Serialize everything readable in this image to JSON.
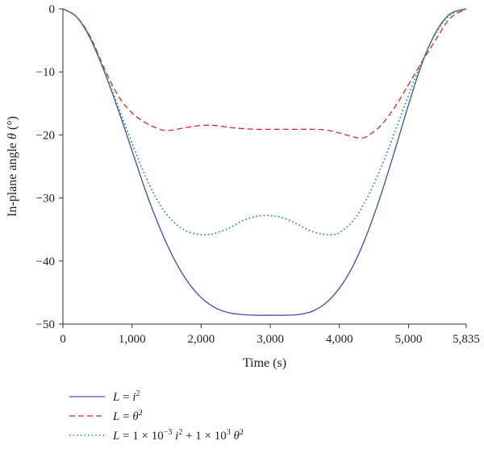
{
  "chart_data": {
    "type": "line",
    "xlabel": "Time (s)",
    "ylabel": "In-plane angle θ (°)",
    "xlim": [
      0,
      5835
    ],
    "ylim": [
      -50,
      0
    ],
    "x_ticks": [
      0,
      1000,
      2000,
      3000,
      4000,
      5000,
      5835
    ],
    "x_tick_labels": [
      "0",
      "1,000",
      "2,000",
      "3,000",
      "4,000",
      "5,000",
      "5,835"
    ],
    "y_ticks": [
      0,
      -10,
      -20,
      -30,
      -40,
      -50
    ],
    "y_tick_labels": [
      "0",
      "−10",
      "−20",
      "−30",
      "−40",
      "−50"
    ],
    "grid": false,
    "legend_position": "bottom-left",
    "series": [
      {
        "name": "L = i²",
        "color": "#3a4fb0",
        "style": "solid",
        "x": [
          0,
          200,
          400,
          600,
          800,
          1000,
          1200,
          1400,
          1600,
          1800,
          2000,
          2200,
          2400,
          2600,
          2800,
          3000,
          3200,
          3400,
          3600,
          3800,
          4000,
          4200,
          4400,
          4600,
          4800,
          5000,
          5200,
          5400,
          5600,
          5835
        ],
        "values": [
          0,
          -1.3,
          -4.8,
          -10.0,
          -16.0,
          -22.5,
          -29.0,
          -34.7,
          -39.5,
          -43.2,
          -45.8,
          -47.4,
          -48.2,
          -48.5,
          -48.6,
          -48.6,
          -48.6,
          -48.5,
          -48.0,
          -46.7,
          -44.3,
          -40.7,
          -35.7,
          -29.5,
          -22.5,
          -15.2,
          -8.5,
          -3.6,
          -0.8,
          0
        ]
      },
      {
        "name": "L = θ̇²",
        "color": "#d62828",
        "style": "dashed",
        "x": [
          0,
          200,
          400,
          600,
          800,
          1000,
          1200,
          1400,
          1500,
          1600,
          1800,
          2000,
          2200,
          2400,
          2600,
          2800,
          3000,
          3200,
          3400,
          3600,
          3800,
          4000,
          4200,
          4300,
          4400,
          4600,
          4800,
          5000,
          5200,
          5400,
          5600,
          5835
        ],
        "values": [
          0,
          -1.3,
          -4.5,
          -9.5,
          -13.8,
          -16.5,
          -18.1,
          -19.1,
          -19.3,
          -19.2,
          -18.8,
          -18.5,
          -18.5,
          -18.8,
          -19.0,
          -19.1,
          -19.1,
          -19.1,
          -19.1,
          -19.1,
          -19.2,
          -19.7,
          -20.3,
          -20.5,
          -20.2,
          -18.5,
          -15.6,
          -12.0,
          -8.3,
          -4.8,
          -1.5,
          0
        ]
      },
      {
        "name": "L = 1 × 10⁻³ i² + 1 × 10³ θ̇²",
        "color": "#2f9a4a",
        "style": "dotted",
        "x": [
          0,
          200,
          400,
          600,
          800,
          1000,
          1200,
          1400,
          1600,
          1800,
          2000,
          2100,
          2200,
          2400,
          2600,
          2800,
          3000,
          3200,
          3400,
          3600,
          3800,
          3900,
          4000,
          4200,
          4400,
          4600,
          4800,
          5000,
          5200,
          5400,
          5600,
          5835
        ],
        "values": [
          0,
          -1.3,
          -4.6,
          -9.8,
          -15.5,
          -21.3,
          -26.7,
          -31.0,
          -33.8,
          -35.3,
          -35.8,
          -35.8,
          -35.6,
          -34.8,
          -33.6,
          -32.9,
          -32.8,
          -33.2,
          -34.2,
          -35.3,
          -35.8,
          -35.8,
          -35.5,
          -33.6,
          -30.0,
          -25.2,
          -19.6,
          -13.7,
          -8.2,
          -3.8,
          -1.0,
          0
        ]
      }
    ]
  },
  "legend": {
    "items": [
      {
        "label_html_key": "series1"
      },
      {
        "label_html_key": "series2"
      },
      {
        "label_html_key": "series3"
      }
    ]
  }
}
